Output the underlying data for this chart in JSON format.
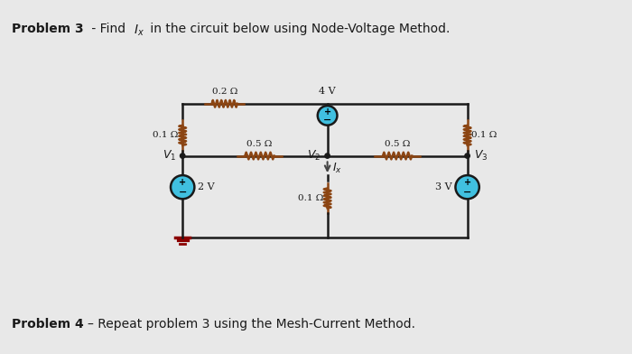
{
  "bg_color": "#e8e8e8",
  "circuit_bg": "#f5f5f5",
  "wire_color": "#1a1a1a",
  "resistor_color": "#8B4513",
  "source_color": "#40c0e0",
  "source_edge": "#2090b0",
  "node_color": "#1a1a1a",
  "text_color": "#1a1a1a",
  "arrow_color": "#555555",
  "title1_bold": "Problem 3",
  "title1_rest": " - Find ",
  "title1_math": "I_x",
  "title1_end": " in the circuit below using Node-Voltage Method.",
  "prob4_bold": "Problem 4",
  "prob4_rest": " – Repeat problem 3 using the Mesh-Current Method.",
  "lw": 1.8,
  "node_r": 3.5
}
